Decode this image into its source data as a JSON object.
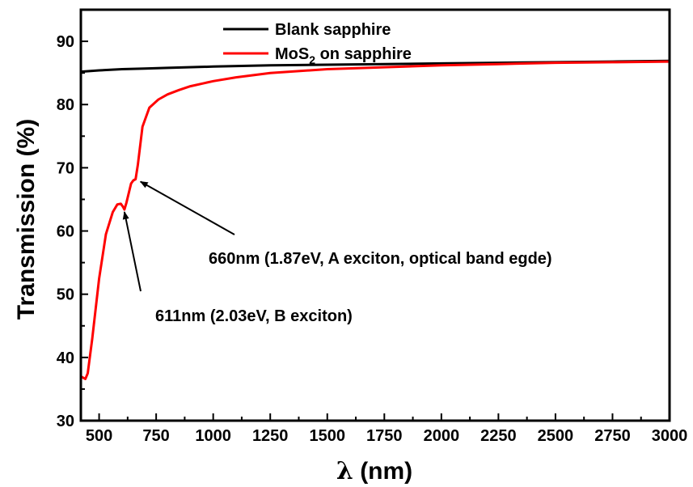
{
  "chart_data": {
    "type": "line",
    "xlabel_symbol": "λ",
    "xlabel_rest": " (nm)",
    "ylabel": "Transmission (%)",
    "xlim": [
      420,
      3000
    ],
    "ylim": [
      30,
      95
    ],
    "xticks": [
      500,
      750,
      1000,
      1250,
      1500,
      1750,
      2000,
      2250,
      2500,
      2750,
      3000
    ],
    "yticks": [
      30,
      40,
      50,
      60,
      70,
      80,
      90
    ],
    "xtick_labels": [
      "500",
      "750",
      "1000",
      "1250",
      "1500",
      "1750",
      "2000",
      "2250",
      "2500",
      "2750",
      "3000"
    ],
    "ytick_labels": [
      "30",
      "40",
      "50",
      "60",
      "70",
      "80",
      "90"
    ],
    "grid": false,
    "legend_position": "top-center",
    "series": [
      {
        "name": "Blank sapphire",
        "name_main": "Blank sapphire",
        "name_sub": "",
        "name_tail": "",
        "color": "#000000",
        "x": [
          420,
          500,
          600,
          700,
          800,
          1000,
          1250,
          1500,
          1750,
          2000,
          2250,
          2500,
          2750,
          3000
        ],
        "y": [
          85.2,
          85.4,
          85.6,
          85.7,
          85.8,
          86.0,
          86.2,
          86.3,
          86.4,
          86.5,
          86.6,
          86.7,
          86.8,
          86.9
        ]
      },
      {
        "name": "MoS2 on sapphire",
        "name_main": "MoS",
        "name_sub": "2",
        "name_tail": " on sapphire",
        "color": "#ff0000",
        "x": [
          420,
          440,
          450,
          470,
          500,
          530,
          560,
          580,
          595,
          605,
          611,
          620,
          640,
          650,
          660,
          670,
          690,
          720,
          760,
          800,
          850,
          900,
          1000,
          1100,
          1250,
          1500,
          1750,
          2000,
          2250,
          2500,
          2750,
          3000
        ],
        "y": [
          37.0,
          36.6,
          37.5,
          43.0,
          52.5,
          59.5,
          63.0,
          64.2,
          64.3,
          63.8,
          63.4,
          64.5,
          67.5,
          68.0,
          68.2,
          70.5,
          76.5,
          79.5,
          80.8,
          81.6,
          82.3,
          82.9,
          83.7,
          84.3,
          85.0,
          85.6,
          85.9,
          86.2,
          86.4,
          86.6,
          86.7,
          86.8
        ]
      }
    ],
    "annotations": [
      {
        "text": "660nm (1.87eV, A exciton, optical band egde)",
        "x": 660,
        "y": 68.2
      },
      {
        "text": "611nm (2.03eV, B exciton)",
        "x": 611,
        "y": 63.4
      }
    ]
  }
}
